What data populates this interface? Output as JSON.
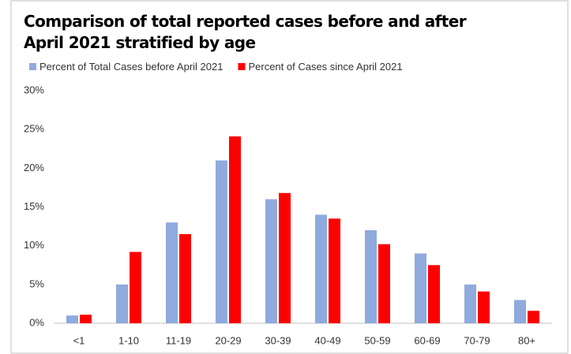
{
  "chart_data": {
    "type": "bar",
    "title": "Comparison of total reported cases before and after April 2021 stratified by age",
    "categories": [
      "<1",
      "1-10",
      "11-19",
      "20-29",
      "30-39",
      "40-49",
      "50-59",
      "60-69",
      "70-79",
      "80+"
    ],
    "series": [
      {
        "name": "Percent of Total Cases before April 2021",
        "color": "#8faadc",
        "values": [
          1,
          5,
          13,
          21,
          16,
          14,
          12,
          9,
          5,
          3
        ]
      },
      {
        "name": "Percent of Cases since April 2021",
        "color": "#ff0000",
        "values": [
          1.1,
          9.2,
          11.5,
          24.1,
          16.8,
          13.5,
          10.2,
          7.5,
          4.1,
          1.6
        ]
      }
    ],
    "ylim": [
      0,
      30
    ],
    "yticks": [
      {
        "value": 0,
        "label": "0%"
      },
      {
        "value": 5,
        "label": "5%"
      },
      {
        "value": 10,
        "label": "10%"
      },
      {
        "value": 15,
        "label": "15%"
      },
      {
        "value": 20,
        "label": "20%"
      },
      {
        "value": 25,
        "label": "25%"
      },
      {
        "value": 30,
        "label": "30%"
      }
    ],
    "grid": false,
    "legend": "top"
  }
}
